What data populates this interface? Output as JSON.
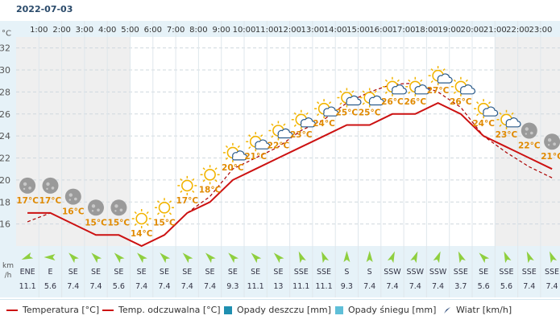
{
  "date": "2022-07-03",
  "colors": {
    "temperature": "#cc1111",
    "feels_like": "#aa0000",
    "rain": "#1f8fb0",
    "snow": "#5fbfd8",
    "header_bg": "#e6f2f8",
    "night_bg": "#efefef",
    "day_bg": "#ffffff",
    "label": "#e08a00",
    "wind_arrow": "#8fcf3f"
  },
  "hours": [
    "1:00",
    "2:00",
    "3:00",
    "4:00",
    "5:00",
    "6:00",
    "7:00",
    "8:00",
    "9:00",
    "10:00",
    "11:00",
    "12:00",
    "13:00",
    "14:00",
    "15:00",
    "16:00",
    "17:00",
    "18:00",
    "19:00",
    "20:00",
    "21:00",
    "22:00",
    "23:00"
  ],
  "y_axis": {
    "unit": "°C",
    "ticks": [
      16,
      18,
      20,
      22,
      24,
      26,
      28,
      30,
      32
    ]
  },
  "wind_axis": {
    "unit_top": "km",
    "unit_bottom": "/h"
  },
  "legend": {
    "temperature": "Temperatura [°C]",
    "feels_like": "Temp. odczuwalna [°C]",
    "rain": "Opady deszczu [mm]",
    "snow": "Opady śniegu [mm]",
    "wind": "Wiatr [km/h]"
  },
  "chart_data": {
    "type": "line",
    "x": [
      "0:30",
      "1:30",
      "2:30",
      "3:30",
      "4:30",
      "5:30",
      "6:30",
      "7:30",
      "8:30",
      "9:30",
      "10:30",
      "11:30",
      "12:30",
      "13:30",
      "14:30",
      "15:30",
      "16:30",
      "17:30",
      "18:30",
      "19:30",
      "20:30",
      "21:30",
      "22:30",
      "23:30"
    ],
    "series": [
      {
        "name": "Temperatura [°C]",
        "values": [
          17,
          17,
          16,
          15,
          15,
          14,
          15,
          17,
          18,
          20,
          21,
          22,
          23,
          24,
          25,
          25,
          26,
          26,
          27,
          26,
          24,
          23,
          22,
          21
        ]
      },
      {
        "name": "Temp. odczuwalna [°C]",
        "values": [
          16.2,
          17,
          16,
          15,
          15,
          14,
          15,
          17,
          18.5,
          21,
          22,
          23,
          24.5,
          25.5,
          27,
          28,
          28.7,
          28.8,
          28,
          26.6,
          24,
          22.5,
          21.2,
          20.2
        ]
      }
    ],
    "point_labels": [
      "17°C",
      "17°C",
      "16°C",
      "15°C",
      "15°C",
      "14°C",
      "15°C",
      "17°C",
      "18°C",
      "20°C",
      "21°C",
      "22°C",
      "23°C",
      "24°C",
      "25°C",
      "25°C",
      "26°C",
      "26°C",
      "27°C",
      "26°C",
      "24°C",
      "23°C",
      "22°C",
      "21°C"
    ],
    "weather_icons": [
      "moon-cloud-icon",
      "moon-cloud-icon",
      "moon-cloud-icon",
      "moon-cloud-icon",
      "moon-cloud-icon",
      "sun-icon",
      "sun-icon",
      "sun-icon",
      "sun-icon",
      "sun-cloud-icon",
      "sun-cloud-icon",
      "sun-cloud-icon",
      "sun-cloud-icon",
      "sun-cloud-icon",
      "sun-cloud-icon",
      "sun-cloud-icon",
      "sun-cloud-icon",
      "sun-cloud-icon",
      "sun-cloud-icon",
      "sun-cloud-icon",
      "sun-cloud-icon",
      "sun-cloud-icon",
      "moon-cloud-icon",
      "moon-cloud-icon"
    ],
    "wind_dir": [
      "ENE",
      "E",
      "SE",
      "SE",
      "SE",
      "SE",
      "SE",
      "SE",
      "SE",
      "SE",
      "SE",
      "SE",
      "SSE",
      "SSE",
      "S",
      "S",
      "SSW",
      "SSW",
      "SSW",
      "SSE",
      "SE",
      "SSE",
      "SSE",
      "SSE"
    ],
    "wind_speed": [
      "11.1",
      "5.6",
      "7.4",
      "7.4",
      "5.6",
      "7.4",
      "7.4",
      "7.4",
      "7.4",
      "9.3",
      "11.1",
      "13",
      "11.1",
      "11.1",
      "9.3",
      "7.4",
      "7.4",
      "7.4",
      "7.4",
      "3.7",
      "5.6",
      "5.6",
      "7.4",
      "7.4"
    ],
    "ylim": [
      14,
      33
    ],
    "xlabel": "",
    "ylabel": "°C",
    "grid": true
  }
}
